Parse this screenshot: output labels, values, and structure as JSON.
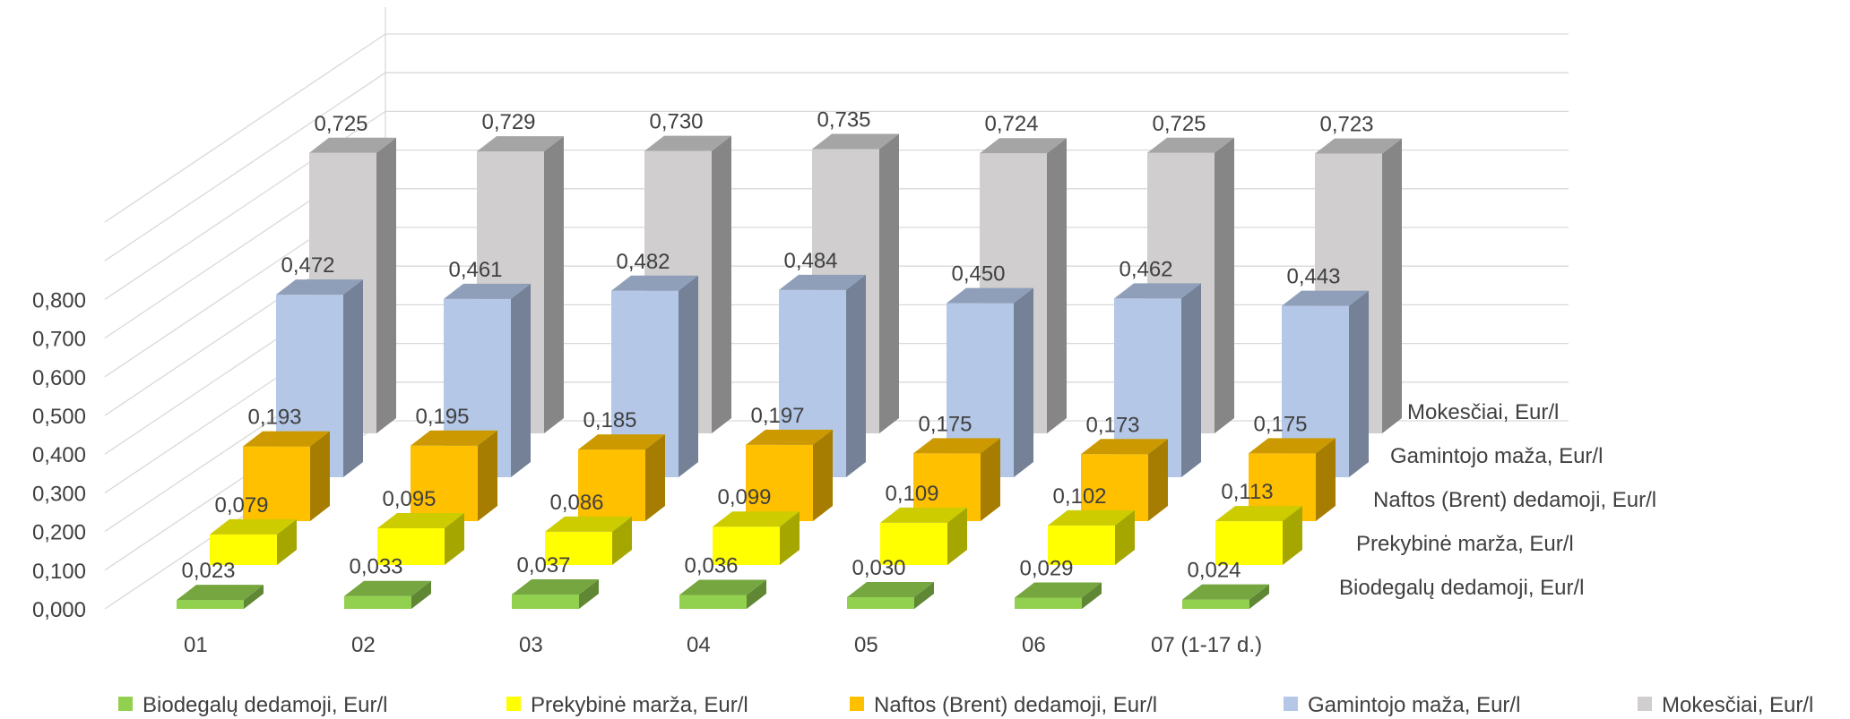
{
  "chart_data": {
    "type": "bar",
    "subtype": "3d-column",
    "categories": [
      "01",
      "02",
      "03",
      "04",
      "05",
      "06",
      "07 (1-17 d.)"
    ],
    "series": [
      {
        "name": "Biodegalų dedamoji, Eur/l",
        "color": "#92D050",
        "values": [
          0.023,
          0.033,
          0.037,
          0.036,
          0.03,
          0.029,
          0.024
        ],
        "labels": [
          "0,023",
          "0,033",
          "0,037",
          "0,036",
          "0,030",
          "0,029",
          "0,024"
        ]
      },
      {
        "name": "Prekybinė marža, Eur/l",
        "color": "#FFFF00",
        "values": [
          0.079,
          0.095,
          0.086,
          0.099,
          0.109,
          0.102,
          0.113
        ],
        "labels": [
          "0,079",
          "0,095",
          "0,086",
          "0,099",
          "0,109",
          "0,102",
          "0,113"
        ]
      },
      {
        "name": "Naftos (Brent) dedamoji, Eur/l",
        "color": "#FFC000",
        "values": [
          0.193,
          0.195,
          0.185,
          0.197,
          0.175,
          0.173,
          0.175
        ],
        "labels": [
          "0,193",
          "0,195",
          "0,185",
          "0,197",
          "0,175",
          "0,173",
          "0,175"
        ]
      },
      {
        "name": "Gamintojo maža, Eur/l",
        "color": "#B4C7E7",
        "values": [
          0.472,
          0.461,
          0.482,
          0.484,
          0.45,
          0.462,
          0.443
        ],
        "labels": [
          "0,472",
          "0,461",
          "0,482",
          "0,484",
          "0,450",
          "0,462",
          "0,443"
        ]
      },
      {
        "name": "Mokesčiai, Eur/l",
        "color": "#D0CECE",
        "values": [
          0.725,
          0.729,
          0.73,
          0.735,
          0.724,
          0.725,
          0.723
        ],
        "labels": [
          "0,725",
          "0,729",
          "0,730",
          "0,735",
          "0,724",
          "0,725",
          "0,723"
        ]
      }
    ],
    "y_ticks": [
      "0,000",
      "0,100",
      "0,200",
      "0,300",
      "0,400",
      "0,500",
      "0,600",
      "0,700",
      "0,800"
    ],
    "ylim": [
      0,
      0.8
    ],
    "grid": true,
    "legend": "bottom",
    "title": "",
    "xlabel": "",
    "ylabel": ""
  }
}
